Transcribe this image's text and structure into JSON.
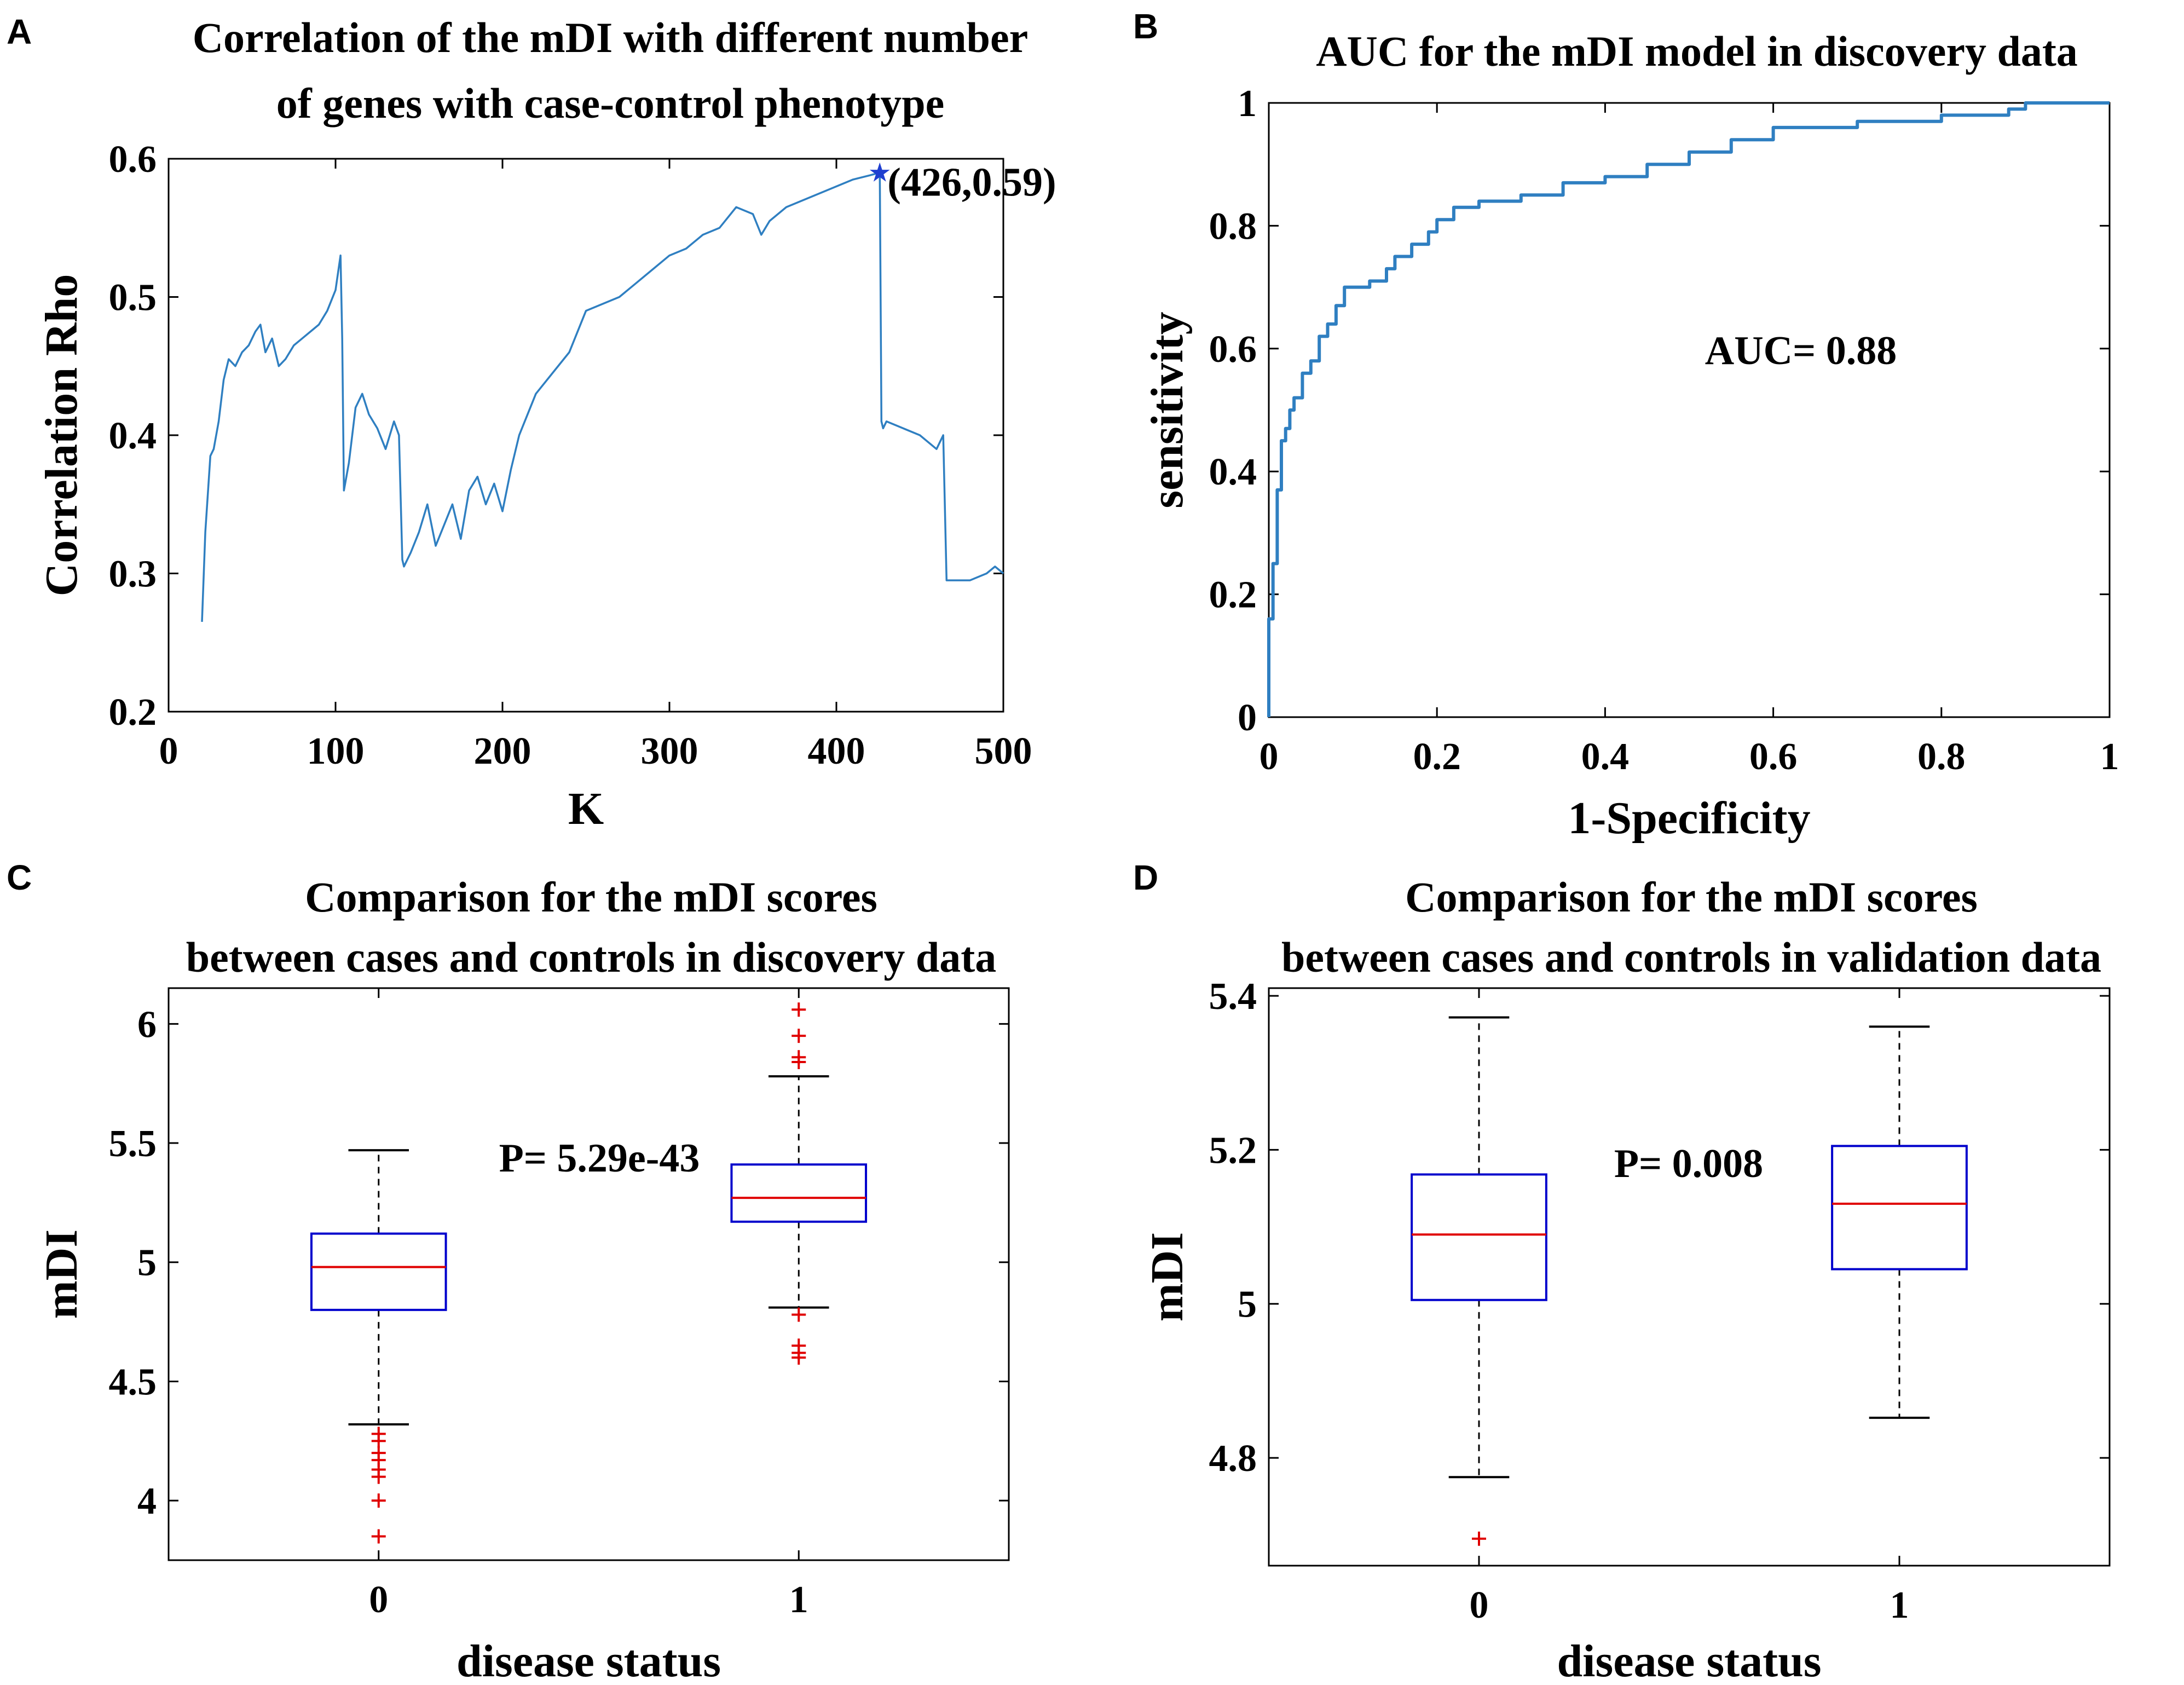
{
  "chart_data": [
    {
      "panel": "A",
      "type": "line",
      "title_lines": [
        "Correlation of the mDI with different number",
        "of genes with case-control phenotype"
      ],
      "xlabel": "K",
      "ylabel": "Correlation Rho",
      "xlim": [
        0,
        500
      ],
      "ylim": [
        0.2,
        0.6
      ],
      "xticks": [
        0,
        100,
        200,
        300,
        400,
        500
      ],
      "xtick_labels": [
        "0",
        "100",
        "200",
        "300",
        "400",
        "500"
      ],
      "yticks": [
        0.2,
        0.3,
        0.4,
        0.5,
        0.6
      ],
      "ytick_labels": [
        "0.2",
        "0.3",
        "0.4",
        "0.5",
        "0.6"
      ],
      "line_color": "#2f7fc1",
      "series": [
        {
          "name": "Correlation Rho",
          "x": [
            20,
            22,
            25,
            27,
            30,
            33,
            36,
            40,
            44,
            48,
            52,
            55,
            58,
            62,
            66,
            70,
            75,
            80,
            85,
            90,
            95,
            100,
            103,
            104,
            105,
            108,
            112,
            116,
            120,
            125,
            130,
            135,
            138,
            140,
            141,
            145,
            150,
            155,
            160,
            165,
            170,
            175,
            180,
            185,
            190,
            195,
            200,
            205,
            210,
            220,
            230,
            240,
            250,
            260,
            270,
            280,
            290,
            300,
            310,
            320,
            330,
            340,
            350,
            355,
            360,
            370,
            380,
            390,
            400,
            410,
            420,
            426,
            427,
            428,
            430,
            440,
            450,
            460,
            464,
            466,
            470,
            480,
            490,
            495,
            500
          ],
          "y": [
            0.265,
            0.33,
            0.385,
            0.39,
            0.41,
            0.44,
            0.455,
            0.45,
            0.46,
            0.465,
            0.475,
            0.48,
            0.46,
            0.47,
            0.45,
            0.455,
            0.465,
            0.47,
            0.475,
            0.48,
            0.49,
            0.505,
            0.53,
            0.47,
            0.36,
            0.38,
            0.42,
            0.43,
            0.415,
            0.405,
            0.39,
            0.41,
            0.4,
            0.31,
            0.305,
            0.315,
            0.33,
            0.35,
            0.32,
            0.335,
            0.35,
            0.325,
            0.36,
            0.37,
            0.35,
            0.365,
            0.345,
            0.375,
            0.4,
            0.43,
            0.445,
            0.46,
            0.49,
            0.495,
            0.5,
            0.51,
            0.52,
            0.53,
            0.535,
            0.545,
            0.55,
            0.565,
            0.56,
            0.545,
            0.555,
            0.565,
            0.57,
            0.575,
            0.58,
            0.585,
            0.588,
            0.59,
            0.41,
            0.405,
            0.41,
            0.405,
            0.4,
            0.39,
            0.4,
            0.295,
            0.295,
            0.295,
            0.3,
            0.305,
            0.3
          ]
        }
      ],
      "marker": {
        "x": 426,
        "y": 0.59,
        "label": "(426,0.59)"
      }
    },
    {
      "panel": "B",
      "type": "line",
      "title_lines": [
        "AUC for the mDI model in discovery data"
      ],
      "xlabel": "1-Specificity",
      "ylabel": "sensitivity",
      "xlim": [
        0,
        1
      ],
      "ylim": [
        0,
        1
      ],
      "xticks": [
        0,
        0.2,
        0.4,
        0.6,
        0.8,
        1
      ],
      "xtick_labels": [
        "0",
        "0.2",
        "0.4",
        "0.6",
        "0.8",
        "1"
      ],
      "yticks": [
        0,
        0.2,
        0.4,
        0.6,
        0.8,
        1
      ],
      "ytick_labels": [
        "0",
        "0.2",
        "0.4",
        "0.6",
        "0.8",
        "1"
      ],
      "line_color": "#2f7fc1",
      "series": [
        {
          "name": "ROC",
          "x": [
            0,
            0,
            0.005,
            0.005,
            0.01,
            0.01,
            0.015,
            0.02,
            0.025,
            0.03,
            0.04,
            0.05,
            0.06,
            0.07,
            0.08,
            0.09,
            0.1,
            0.12,
            0.14,
            0.15,
            0.17,
            0.19,
            0.2,
            0.22,
            0.25,
            0.3,
            0.35,
            0.4,
            0.45,
            0.5,
            0.55,
            0.6,
            0.7,
            0.8,
            0.88,
            0.9,
            1.0
          ],
          "y": [
            0,
            0.16,
            0.2,
            0.25,
            0.33,
            0.37,
            0.45,
            0.47,
            0.5,
            0.52,
            0.56,
            0.58,
            0.62,
            0.64,
            0.67,
            0.7,
            0.7,
            0.71,
            0.73,
            0.75,
            0.77,
            0.79,
            0.81,
            0.83,
            0.84,
            0.85,
            0.87,
            0.88,
            0.9,
            0.92,
            0.94,
            0.96,
            0.97,
            0.98,
            0.99,
            1.0,
            1.0
          ]
        }
      ],
      "annotation": "AUC= 0.88"
    },
    {
      "panel": "C",
      "type": "box",
      "title_lines": [
        "Comparison for the mDI scores",
        "between cases and controls in discovery data"
      ],
      "xlabel": "disease status",
      "ylabel": "mDI",
      "xlim": [
        -0.5,
        1.5
      ],
      "ylim": [
        3.75,
        6.15
      ],
      "xticks": [
        0,
        1
      ],
      "xtick_labels": [
        "0",
        "1"
      ],
      "yticks": [
        4,
        4.5,
        5,
        5.5,
        6
      ],
      "ytick_labels": [
        "4",
        "4.5",
        "5",
        "5.5",
        "6"
      ],
      "box_color": "#0000cc",
      "median_color": "#e00000",
      "outlier_color": "#e00000",
      "boxes": [
        {
          "x": 0,
          "whisker_low": 4.32,
          "q1": 4.8,
          "median": 4.98,
          "q3": 5.12,
          "whisker_high": 5.47,
          "outliers": [
            4.28,
            4.25,
            4.2,
            4.17,
            4.13,
            4.1,
            4.0,
            3.85
          ]
        },
        {
          "x": 1,
          "whisker_low": 4.81,
          "q1": 5.17,
          "median": 5.27,
          "q3": 5.41,
          "whisker_high": 5.78,
          "outliers": [
            5.86,
            5.84,
            5.95,
            6.06,
            4.78,
            4.65,
            4.62,
            4.6
          ]
        }
      ],
      "annotation": "P= 5.29e-43"
    },
    {
      "panel": "D",
      "type": "box",
      "title_lines": [
        "Comparison for the mDI scores",
        "between cases and controls in validation data"
      ],
      "xlabel": "disease status",
      "ylabel": "mDI",
      "xlim": [
        -0.5,
        1.5
      ],
      "ylim": [
        4.66,
        5.41
      ],
      "xticks": [
        0,
        1
      ],
      "xtick_labels": [
        "0",
        "1"
      ],
      "yticks": [
        4.8,
        5.0,
        5.2,
        5.4
      ],
      "ytick_labels": [
        "4.8",
        "5",
        "5.2",
        "5.4"
      ],
      "box_color": "#0000cc",
      "median_color": "#e00000",
      "outlier_color": "#e00000",
      "boxes": [
        {
          "x": 0,
          "whisker_low": 4.775,
          "q1": 5.005,
          "median": 5.09,
          "q3": 5.168,
          "whisker_high": 5.372,
          "outliers": [
            4.695
          ]
        },
        {
          "x": 1,
          "whisker_low": 4.852,
          "q1": 5.045,
          "median": 5.13,
          "q3": 5.205,
          "whisker_high": 5.36,
          "outliers": []
        }
      ],
      "annotation": "P= 0.008"
    }
  ]
}
